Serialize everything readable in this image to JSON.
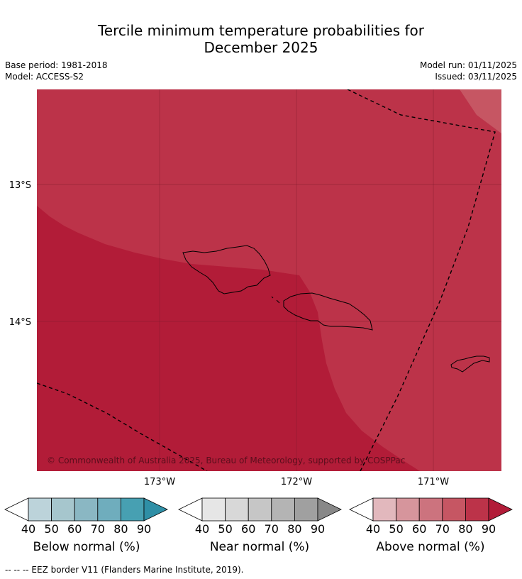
{
  "title_line1": "Tercile minimum temperature probabilities for",
  "title_line2": "December 2025",
  "base_period": "Base period: 1981-2018",
  "model": "Model: ACCESS-S2",
  "model_run": "Model run: 01/11/2025",
  "issued": "Issued: 03/11/2025",
  "lat_labels": [
    "13°S",
    "14°S"
  ],
  "lon_labels": [
    "173°W",
    "172°W",
    "171°W"
  ],
  "copyright": "© Commonwealth of Australia 2025, Bureau of Meteorology, supported by COSPPac",
  "colorbars": [
    {
      "label": "Below normal (%)",
      "ticks": [
        "40",
        "50",
        "60",
        "70",
        "80",
        "90"
      ],
      "colors": [
        "#ffffff",
        "#bcd3da",
        "#a6c6cd",
        "#8ab7c3",
        "#6fadbd",
        "#47a0b2",
        "#2f8fa6"
      ]
    },
    {
      "label": "Near normal (%)",
      "ticks": [
        "40",
        "50",
        "60",
        "70",
        "80",
        "90"
      ],
      "colors": [
        "#ffffff",
        "#e6e6e6",
        "#d8d8d8",
        "#c6c6c6",
        "#b4b4b4",
        "#a0a0a0",
        "#888888"
      ]
    },
    {
      "label": "Above normal (%)",
      "ticks": [
        "40",
        "50",
        "60",
        "70",
        "80",
        "90"
      ],
      "colors": [
        "#ffffff",
        "#e2b8bd",
        "#d6959c",
        "#cc737e",
        "#c65663",
        "#bc3349",
        "#b21c38"
      ]
    }
  ],
  "region_colors": {
    "above_80": "#bc3349",
    "above_90": "#b21c38",
    "above_70": "#c65663"
  },
  "footer": "--  --  -- EEZ border V11 (Flanders Marine Institute, 2019)."
}
